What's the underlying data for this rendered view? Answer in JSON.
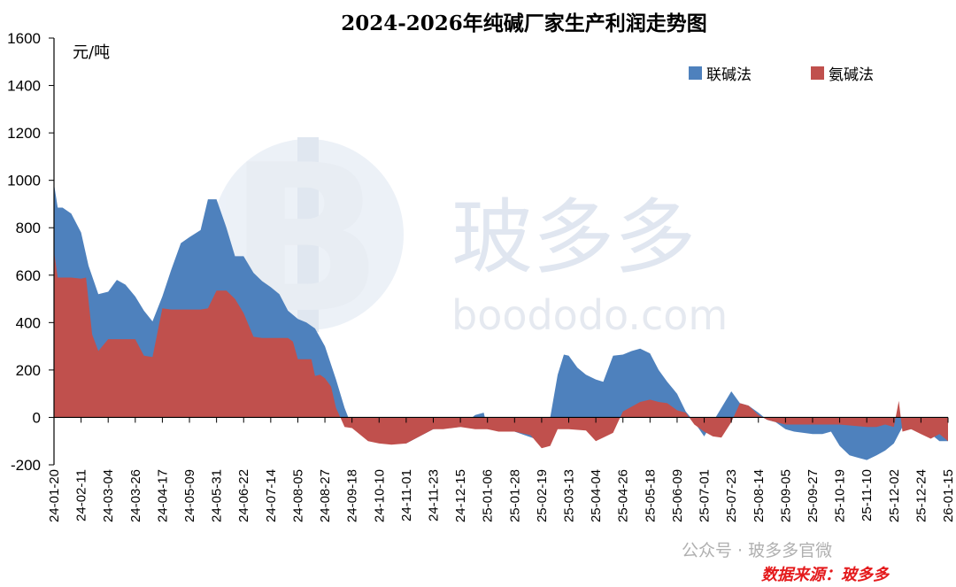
{
  "chart_data": {
    "type": "area",
    "title": "2024-2026年纯碱厂家生产利润走势图",
    "ylabel": "元/吨",
    "ylim": [
      -200,
      1600
    ],
    "yticks": [
      -200,
      0,
      200,
      400,
      600,
      800,
      1000,
      1200,
      1400,
      1600
    ],
    "grid": false,
    "legend_position": "top-right",
    "xtick_labels": [
      "24-01-20",
      "24-02-11",
      "24-03-04",
      "24-03-26",
      "24-04-17",
      "24-05-09",
      "24-05-31",
      "24-06-22",
      "24-07-14",
      "24-08-05",
      "24-08-27",
      "24-09-18",
      "24-10-10",
      "24-11-01",
      "24-11-23",
      "24-12-15",
      "25-01-06",
      "25-01-28",
      "25-02-19",
      "25-03-13",
      "25-04-04",
      "25-04-26",
      "25-05-18",
      "25-06-09",
      "25-07-01",
      "25-07-23",
      "25-08-14",
      "25-09-05",
      "25-09-27",
      "25-10-19",
      "25-11-10",
      "25-12-02",
      "25-12-24",
      "26-01-15"
    ],
    "series": [
      {
        "name": "联碱法",
        "color": "#4e81bd",
        "x": [
          "24-01-20",
          "24-01-23",
          "24-01-27",
          "24-02-03",
          "24-02-11",
          "24-02-17",
          "24-02-25",
          "24-03-04",
          "24-03-11",
          "24-03-18",
          "24-03-26",
          "24-04-02",
          "24-04-09",
          "24-04-17",
          "24-04-24",
          "24-05-02",
          "24-05-09",
          "24-05-18",
          "24-05-24",
          "24-05-31",
          "24-06-08",
          "24-06-15",
          "24-06-22",
          "24-06-30",
          "24-07-07",
          "24-07-14",
          "24-07-21",
          "24-07-28",
          "24-08-05",
          "24-08-12",
          "24-08-19",
          "24-08-27",
          "24-09-05",
          "24-09-12",
          "24-09-18",
          "24-10-10",
          "24-11-01",
          "24-11-23",
          "24-12-15",
          "24-12-27",
          "25-01-03",
          "25-01-06",
          "25-01-28",
          "25-02-19",
          "25-02-26",
          "25-03-04",
          "25-03-09",
          "25-03-13",
          "25-03-20",
          "25-03-27",
          "25-04-04",
          "25-04-10",
          "25-04-18",
          "25-04-26",
          "25-05-03",
          "25-05-10",
          "25-05-18",
          "25-05-25",
          "25-06-01",
          "25-06-09",
          "25-06-16",
          "25-06-23",
          "25-07-01",
          "25-07-23",
          "25-07-30",
          "25-08-06",
          "25-08-14",
          "25-08-21",
          "25-08-28",
          "25-09-05",
          "25-09-12",
          "25-09-27",
          "25-10-05",
          "25-10-12",
          "25-10-19",
          "25-10-27",
          "25-11-03",
          "25-11-10",
          "25-11-18",
          "25-11-25",
          "25-12-02",
          "25-12-09",
          "25-12-16",
          "25-12-24",
          "26-01-01",
          "26-01-08",
          "26-01-15"
        ],
        "values": [
          985,
          885,
          885,
          860,
          780,
          640,
          520,
          530,
          580,
          560,
          510,
          450,
          405,
          510,
          620,
          735,
          760,
          790,
          920,
          920,
          800,
          680,
          680,
          610,
          575,
          550,
          520,
          450,
          415,
          400,
          375,
          300,
          160,
          40,
          -40,
          -100,
          -110,
          -50,
          -40,
          10,
          20,
          -50,
          -60,
          -100,
          0,
          180,
          265,
          260,
          210,
          180,
          160,
          150,
          260,
          265,
          280,
          290,
          270,
          200,
          150,
          100,
          25,
          -20,
          -80,
          110,
          60,
          50,
          20,
          -10,
          -20,
          -50,
          -60,
          -70,
          -70,
          -60,
          -120,
          -160,
          -170,
          -180,
          -160,
          -140,
          -110,
          -40,
          -50,
          -60,
          -70,
          -100,
          -100
        ]
      },
      {
        "name": "氨碱法",
        "color": "#c0504d",
        "x": [
          "24-01-20",
          "24-01-23",
          "24-01-27",
          "24-02-03",
          "24-02-11",
          "24-02-15",
          "24-02-20",
          "24-02-25",
          "24-03-04",
          "24-03-11",
          "24-03-18",
          "24-03-26",
          "24-04-02",
          "24-04-09",
          "24-04-17",
          "24-04-24",
          "24-05-02",
          "24-05-09",
          "24-05-18",
          "24-05-24",
          "24-05-31",
          "24-06-08",
          "24-06-15",
          "24-06-22",
          "24-06-30",
          "24-07-07",
          "24-07-14",
          "24-07-21",
          "24-07-28",
          "24-08-01",
          "24-08-05",
          "24-08-09",
          "24-08-12",
          "24-08-16",
          "24-08-19",
          "24-08-23",
          "24-08-27",
          "24-09-01",
          "24-09-05",
          "24-09-12",
          "24-09-18",
          "24-10-01",
          "24-10-10",
          "24-10-20",
          "24-11-01",
          "24-11-10",
          "24-11-23",
          "24-12-01",
          "24-12-15",
          "24-12-27",
          "25-01-06",
          "25-01-15",
          "25-01-28",
          "25-02-10",
          "25-02-19",
          "25-02-26",
          "25-03-04",
          "25-03-13",
          "25-03-27",
          "25-04-04",
          "25-04-10",
          "25-04-18",
          "25-04-26",
          "25-05-03",
          "25-05-10",
          "25-05-18",
          "25-05-25",
          "25-06-01",
          "25-06-09",
          "25-06-16",
          "25-06-23",
          "25-07-01",
          "25-07-08",
          "25-07-15",
          "25-07-23",
          "25-07-30",
          "25-08-06",
          "25-08-14",
          "25-08-21",
          "25-08-28",
          "25-09-05",
          "25-09-27",
          "25-10-19",
          "25-11-10",
          "25-11-18",
          "25-11-25",
          "25-12-02",
          "25-12-06",
          "25-12-09",
          "25-12-16",
          "25-12-24",
          "26-01-01",
          "26-01-08",
          "26-01-15"
        ],
        "values": [
          700,
          590,
          590,
          590,
          585,
          590,
          350,
          280,
          330,
          330,
          330,
          330,
          260,
          255,
          460,
          455,
          455,
          455,
          455,
          460,
          535,
          535,
          500,
          440,
          340,
          335,
          335,
          335,
          335,
          320,
          245,
          245,
          245,
          245,
          175,
          180,
          165,
          130,
          40,
          -40,
          -45,
          -100,
          -110,
          -115,
          -110,
          -85,
          -50,
          -50,
          -40,
          -50,
          -50,
          -60,
          -60,
          -75,
          -130,
          -120,
          -50,
          -50,
          -55,
          -100,
          -85,
          -65,
          25,
          45,
          65,
          75,
          65,
          60,
          30,
          20,
          -30,
          -60,
          -80,
          -85,
          -20,
          60,
          50,
          10,
          -10,
          -20,
          -30,
          -30,
          -30,
          -40,
          -40,
          -30,
          -40,
          70,
          -60,
          -50,
          -70,
          -90,
          -70,
          -100
        ]
      }
    ],
    "annotations": [
      "数据来源：玻多多"
    ]
  },
  "watermark": {
    "logo_letter": "B",
    "name": "玻多多",
    "domain": "boododo.com",
    "wechat": "公众号 · 玻多多官微"
  }
}
